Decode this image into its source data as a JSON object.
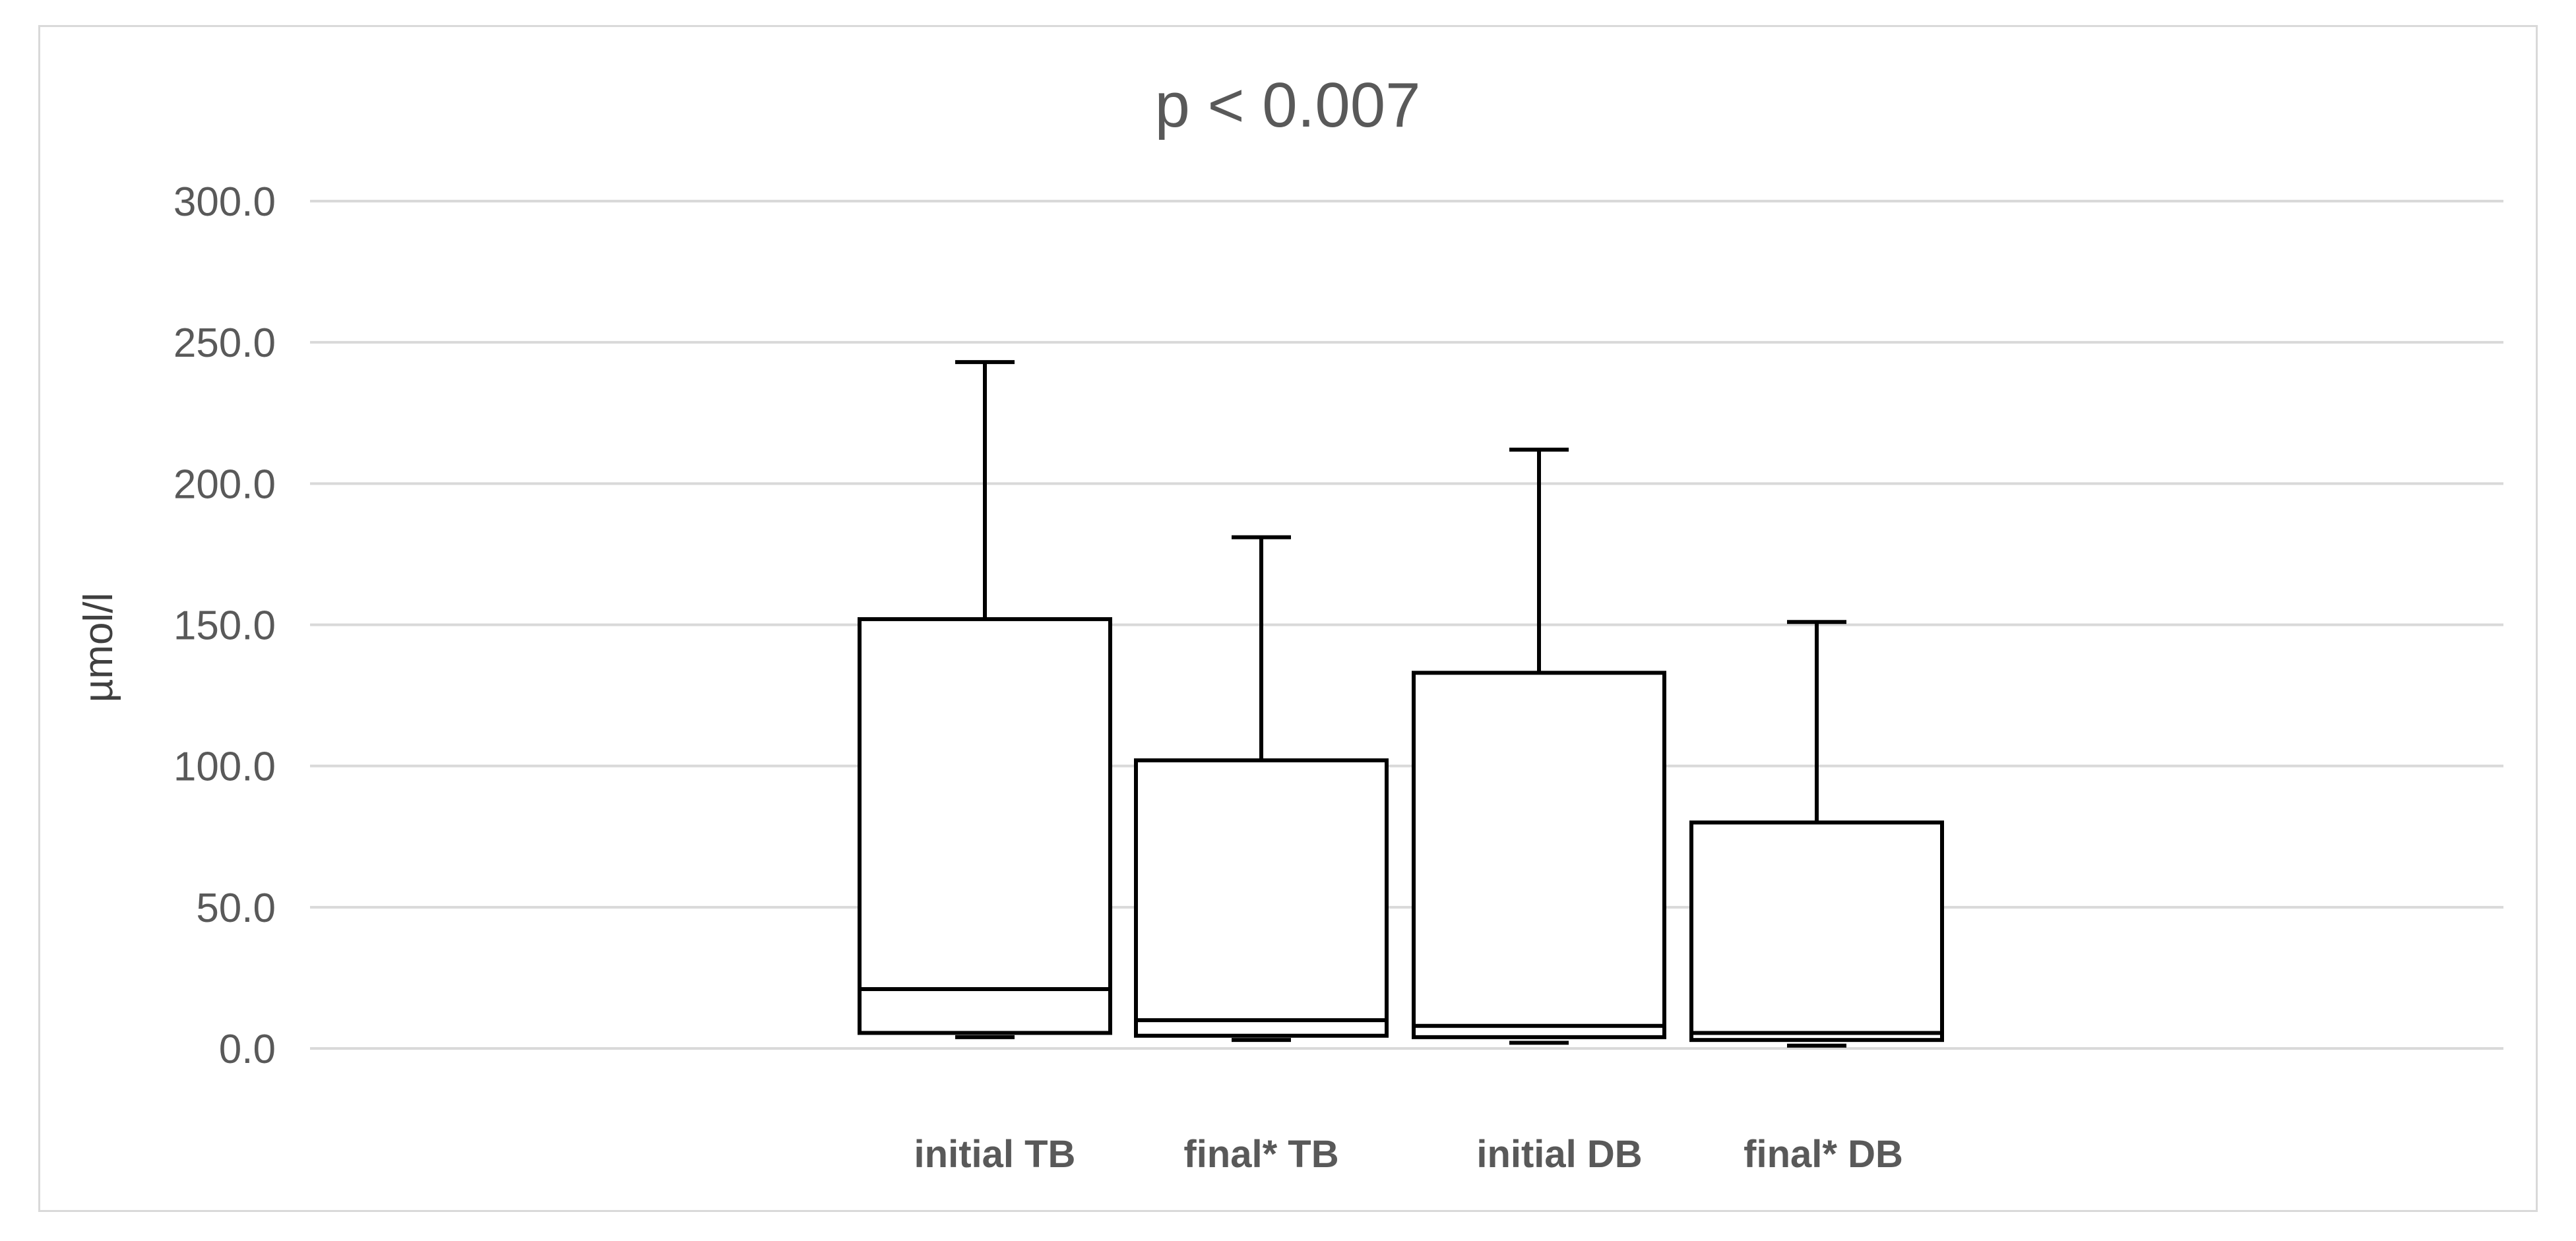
{
  "chart_data": {
    "type": "box",
    "title": "p < 0.007",
    "xlabel": "",
    "ylabel": "µmol/l",
    "ylim": [
      0,
      300
    ],
    "yticks": [
      "0.0",
      "50.0",
      "100.0",
      "150.0",
      "200.0",
      "250.0",
      "300.0"
    ],
    "grid": true,
    "categories": [
      "initial TB",
      "final* TB",
      "initial DB",
      "final* DB"
    ],
    "boxes": [
      {
        "name": "initial TB",
        "min": 4,
        "q1": 5.5,
        "median": 21,
        "q3": 152,
        "max": 243
      },
      {
        "name": "final* TB",
        "min": 3,
        "q1": 4.5,
        "median": 10,
        "q3": 102,
        "max": 181
      },
      {
        "name": "initial DB",
        "min": 2,
        "q1": 4,
        "median": 8,
        "q3": 133,
        "max": 212
      },
      {
        "name": "final* DB",
        "min": 1,
        "q1": 3,
        "median": 5.5,
        "q3": 80,
        "max": 151
      }
    ]
  }
}
